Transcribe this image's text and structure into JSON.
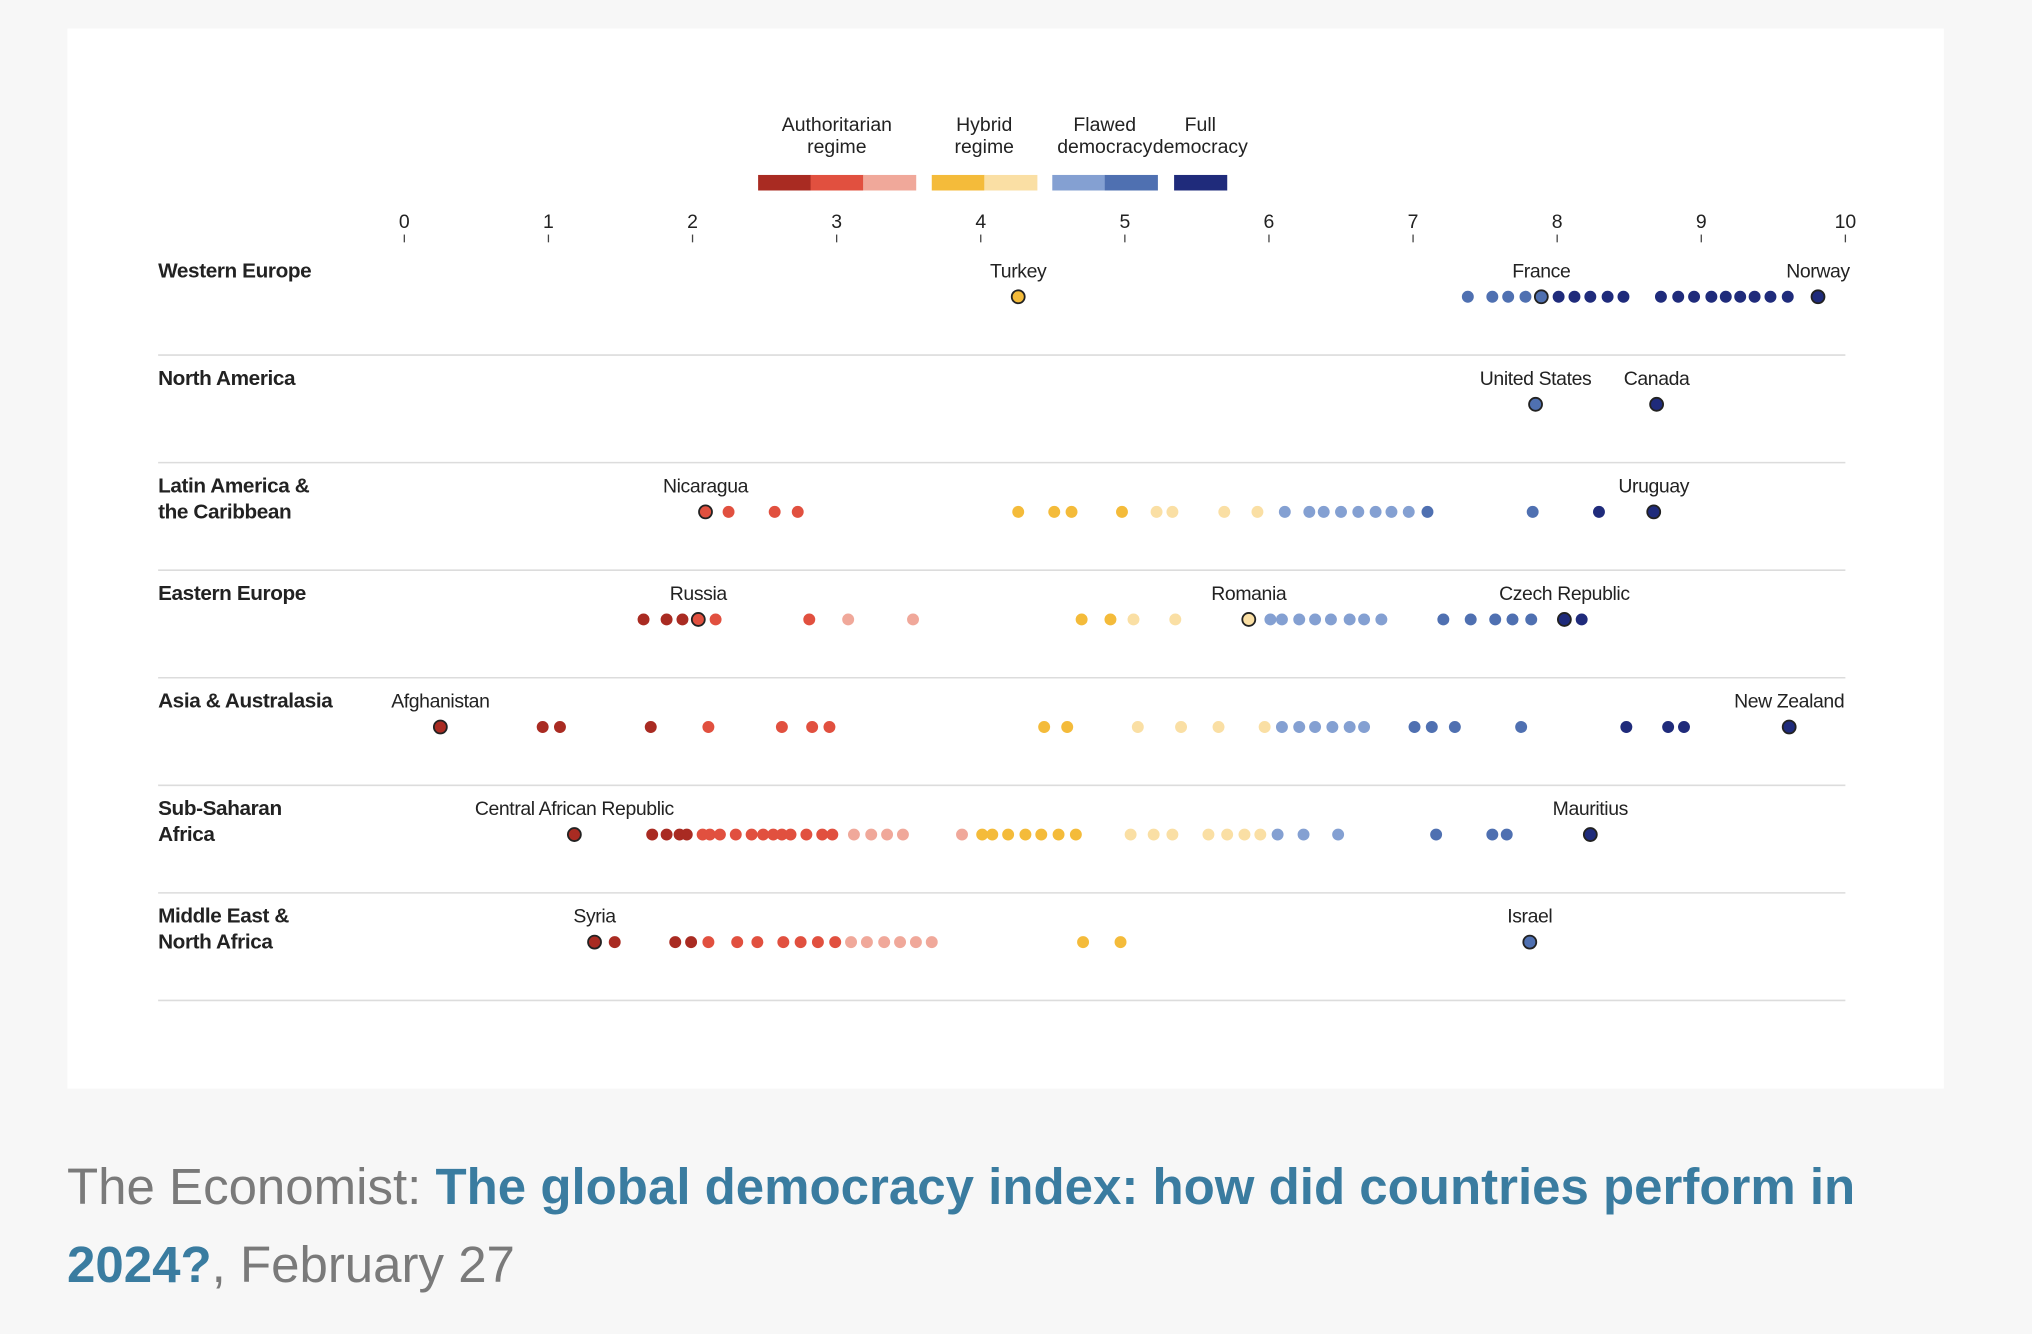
{
  "chart_data": {
    "type": "strip",
    "xlim": [
      0,
      10
    ],
    "xticks": [
      0,
      1,
      2,
      3,
      4,
      5,
      6,
      7,
      8,
      9,
      10
    ],
    "color_breaks": [
      2,
      3,
      4,
      5,
      6,
      7,
      8
    ],
    "legend": [
      {
        "label": "Authoritarian\nregime",
        "colors": [
          "#a92b22",
          "#e1503f",
          "#f0a89a"
        ]
      },
      {
        "label": "Hybrid\nregime",
        "colors": [
          "#f4bb3a",
          "#fadfa4"
        ]
      },
      {
        "label": "Flawed\ndemocracy",
        "colors": [
          "#84a0d2",
          "#4f70b1"
        ]
      },
      {
        "label": "Full\ndemocracy",
        "colors": [
          "#1f2b7b"
        ]
      }
    ],
    "rows": [
      {
        "name": "Western Europe",
        "values": [
          7.38,
          7.55,
          7.66,
          7.78,
          8.01,
          8.12,
          8.23,
          8.35,
          8.46,
          8.72,
          8.84,
          8.95,
          9.07,
          9.17,
          9.27,
          9.37,
          9.48,
          9.6
        ],
        "labeled": [
          {
            "label": "Turkey",
            "value": 4.26
          },
          {
            "label": "France",
            "value": 7.89
          },
          {
            "label": "Norway",
            "value": 9.81
          }
        ]
      },
      {
        "name": "North America",
        "values": [],
        "labeled": [
          {
            "label": "United States",
            "value": 7.85
          },
          {
            "label": "Canada",
            "value": 8.69
          }
        ]
      },
      {
        "name": "Latin America &\nthe Caribbean",
        "values": [
          2.25,
          2.57,
          2.73,
          4.26,
          4.51,
          4.63,
          4.98,
          5.22,
          5.33,
          5.69,
          5.92,
          6.11,
          6.28,
          6.38,
          6.5,
          6.62,
          6.74,
          6.85,
          6.97,
          7.1,
          7.83,
          8.29
        ],
        "labeled": [
          {
            "label": "Nicaragua",
            "value": 2.09
          },
          {
            "label": "Uruguay",
            "value": 8.67
          }
        ]
      },
      {
        "name": "Eastern Europe",
        "values": [
          1.66,
          1.82,
          1.93,
          2.16,
          2.81,
          3.08,
          3.53,
          4.7,
          4.9,
          5.06,
          5.35,
          6.01,
          6.09,
          6.21,
          6.32,
          6.43,
          6.56,
          6.66,
          6.78,
          7.21,
          7.4,
          7.57,
          7.69,
          7.82,
          8.17
        ],
        "labeled": [
          {
            "label": "Russia",
            "value": 2.04
          },
          {
            "label": "Romania",
            "value": 5.86
          },
          {
            "label": "Czech Republic",
            "value": 8.05
          }
        ]
      },
      {
        "name": "Asia & Australasia",
        "values": [
          0.96,
          1.08,
          1.71,
          2.11,
          2.62,
          2.83,
          2.95,
          4.44,
          4.6,
          5.09,
          5.39,
          5.65,
          5.97,
          6.09,
          6.21,
          6.32,
          6.44,
          6.56,
          6.66,
          7.01,
          7.13,
          7.29,
          7.75,
          8.48,
          8.77,
          8.88
        ],
        "labeled": [
          {
            "label": "Afghanistan",
            "value": 0.25
          },
          {
            "label": "New Zealand",
            "value": 9.61
          }
        ]
      },
      {
        "name": "Sub-Saharan\nAfrica",
        "values": [
          1.72,
          1.82,
          1.91,
          1.96,
          2.07,
          2.12,
          2.19,
          2.3,
          2.41,
          2.49,
          2.56,
          2.62,
          2.68,
          2.79,
          2.9,
          2.97,
          3.12,
          3.24,
          3.35,
          3.46,
          3.87,
          4.01,
          4.08,
          4.19,
          4.31,
          4.42,
          4.54,
          4.66,
          5.04,
          5.2,
          5.33,
          5.58,
          5.71,
          5.83,
          5.94,
          6.06,
          6.24,
          6.48,
          7.16,
          7.55,
          7.65
        ],
        "labeled": [
          {
            "label": "Central African Republic",
            "value": 1.18
          },
          {
            "label": "Mauritius",
            "value": 8.23
          }
        ]
      },
      {
        "name": "Middle East &\nNorth Africa",
        "values": [
          1.46,
          1.88,
          1.99,
          2.11,
          2.31,
          2.45,
          2.63,
          2.75,
          2.87,
          2.99,
          3.1,
          3.21,
          3.33,
          3.44,
          3.55,
          3.66,
          4.71,
          4.97
        ],
        "labeled": [
          {
            "label": "Syria",
            "value": 1.32
          },
          {
            "label": "Israel",
            "value": 7.81
          }
        ]
      }
    ]
  },
  "caption": {
    "source": "The Economist:",
    "title": "The global democracy index: how did countries perform in 2024?",
    "date": ", February 27"
  }
}
